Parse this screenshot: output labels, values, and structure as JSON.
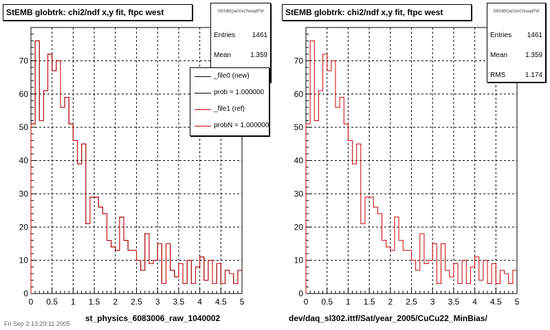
{
  "chart_data": [
    {
      "type": "histogram",
      "title": "StEMB globtrk: chi2/ndf x,y fit, ftpc west",
      "xlabel": "st_physics_6083006_raw_1040002",
      "ylabel": "",
      "xlim": [
        0,
        5
      ],
      "ylim": [
        0,
        80
      ],
      "grid": true,
      "x_ticks": [
        "0",
        "0.5",
        "1",
        "1.5",
        "2",
        "2.5",
        "3",
        "3.5",
        "4",
        "4.5",
        "5"
      ],
      "y_ticks": [
        "0",
        "10",
        "20",
        "30",
        "40",
        "50",
        "60",
        "70"
      ],
      "bin_width": 0.1,
      "series": [
        {
          "name": "_file1 (ref)",
          "color": "#cc0000",
          "values": [
            51,
            76,
            52,
            61,
            72,
            67,
            70,
            56,
            59,
            51,
            46,
            39,
            45,
            21,
            29,
            29,
            26,
            24,
            16,
            14,
            13,
            23,
            16,
            13,
            13,
            10,
            7,
            18,
            9,
            10,
            15,
            3,
            15,
            7,
            5,
            9,
            3,
            10,
            3,
            8,
            11,
            4,
            10,
            3,
            9,
            3,
            7,
            6,
            3,
            7
          ]
        },
        {
          "name": "_file0 (new)",
          "color": "#000000",
          "values": [
            51,
            76,
            52,
            61,
            72,
            67,
            70,
            56,
            59,
            51,
            46,
            39,
            45,
            21,
            29,
            29,
            26,
            24,
            16,
            14,
            13,
            23,
            16,
            13,
            13,
            10,
            7,
            18,
            9,
            10,
            15,
            3,
            15,
            7,
            5,
            9,
            3,
            10,
            3,
            8,
            11,
            4,
            10,
            3,
            9,
            3,
            7,
            6,
            3,
            7
          ]
        }
      ],
      "stats": {
        "name": "StEMBQaGtrkChiwqdFW",
        "entries_label": "Entries",
        "entries": "1461",
        "mean_label": "Mean",
        "mean": "1.359"
      },
      "legend": {
        "placement": "top-right",
        "entries": [
          {
            "label": "_file0 (new)",
            "color": "#000000"
          },
          {
            "label": "prob = 1.000000",
            "color": "#000000"
          },
          {
            "label": "_file1 (ref)",
            "color": "#cc0000"
          },
          {
            "label": "probN = 1.000000",
            "color": "#cc0000"
          }
        ]
      }
    },
    {
      "type": "histogram",
      "title": "StEMB globtrk: chi2/ndf x,y fit, ftpc west",
      "xlabel": "dev/daq_sl302.ittf/Sat/year_2005/CuCu22_MinBias/",
      "ylabel": "",
      "xlim": [
        0,
        5
      ],
      "ylim": [
        0,
        80
      ],
      "grid": true,
      "x_ticks": [
        "0",
        "0.5",
        "1",
        "1.5",
        "2",
        "2.5",
        "3",
        "3.5",
        "4",
        "4.5",
        "5"
      ],
      "y_ticks": [
        "0",
        "10",
        "20",
        "30",
        "40",
        "50",
        "60",
        "70"
      ],
      "bin_width": 0.1,
      "series": [
        {
          "name": "_file1 (ref)",
          "color": "#cc0000",
          "values": [
            51,
            76,
            52,
            61,
            72,
            67,
            70,
            56,
            59,
            51,
            46,
            39,
            45,
            21,
            29,
            29,
            26,
            24,
            16,
            14,
            13,
            23,
            16,
            13,
            13,
            10,
            7,
            18,
            9,
            10,
            15,
            3,
            15,
            7,
            5,
            9,
            3,
            10,
            3,
            8,
            11,
            4,
            10,
            3,
            9,
            3,
            7,
            6,
            3,
            7
          ]
        }
      ],
      "stats": {
        "name": "StEMBQaGtrkChiwqdFW",
        "entries_label": "Entries",
        "entries": "1461",
        "mean_label": "Mean",
        "mean": "1.359",
        "rms_label": "RMS",
        "rms": "1.174"
      }
    }
  ],
  "footer": {
    "date_text": "Fri Sep 2 13:29:11 2005"
  }
}
